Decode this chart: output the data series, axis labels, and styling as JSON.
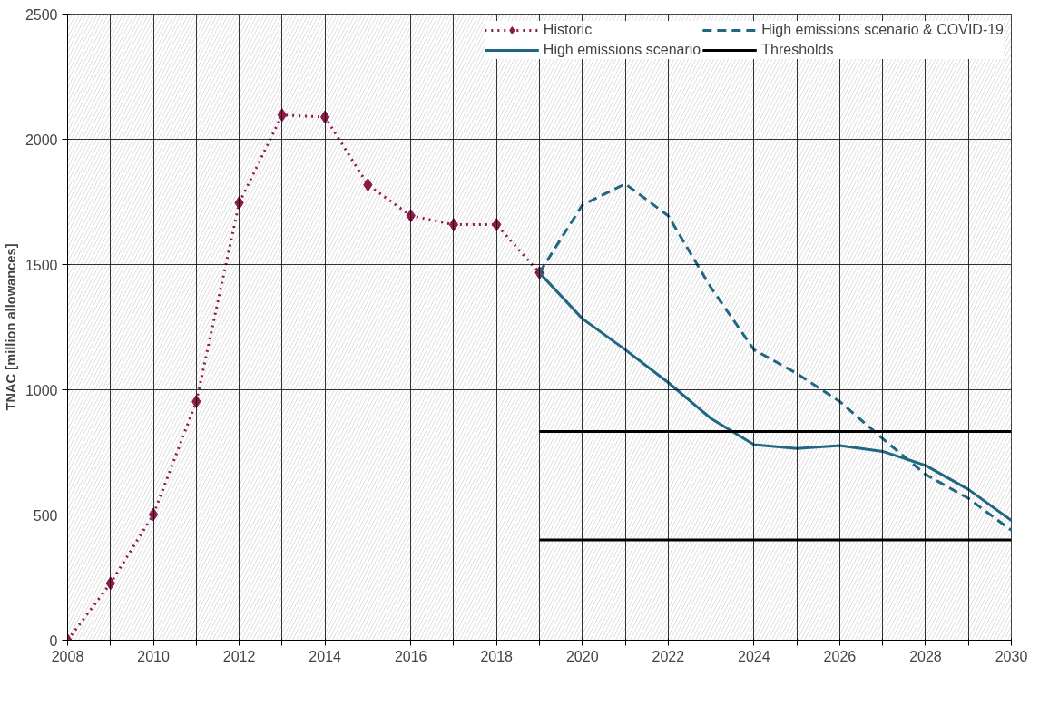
{
  "chart_data": {
    "type": "line",
    "ylabel": "TNAC [million allowances]",
    "xlim": [
      2008,
      2030
    ],
    "ylim": [
      0,
      2500
    ],
    "xticks": [
      2008,
      {
        "value": 2009,
        "label": null
      },
      2010,
      {
        "value": 2011,
        "label": null
      },
      2012,
      {
        "value": 2013,
        "label": null
      },
      2014,
      {
        "value": 2015,
        "label": null
      },
      2016,
      {
        "value": 2017,
        "label": null
      },
      2018,
      {
        "value": 2019,
        "label": null
      },
      2020,
      {
        "value": 2021,
        "label": null
      },
      2022,
      {
        "value": 2023,
        "label": null
      },
      2024,
      {
        "value": 2025,
        "label": null
      },
      2026,
      {
        "value": 2027,
        "label": null
      },
      2028,
      {
        "value": 2029,
        "label": null
      },
      2030
    ],
    "yticks": [
      0,
      500,
      1000,
      1500,
      2000,
      2500
    ],
    "grid": true,
    "legend": "top right",
    "series": [
      {
        "name": "Historic",
        "color": "#8b1a4a",
        "line_style": "dotted",
        "marker": "diamond",
        "x": [
          2008,
          2009,
          2010,
          2011,
          2012,
          2013,
          2014,
          2015,
          2016,
          2017,
          2018,
          2019
        ],
        "values": [
          0,
          227,
          502,
          953,
          1746,
          2097,
          2089,
          1818,
          1695,
          1659,
          1659,
          1467
        ]
      },
      {
        "name": "High emissions scenario",
        "color": "#1f6782",
        "line_style": "solid",
        "marker": "none",
        "x": [
          2019,
          2020,
          2021,
          2022,
          2023,
          2024,
          2025,
          2026,
          2027,
          2028,
          2029,
          2030
        ],
        "values": [
          1467,
          1284,
          1160,
          1029,
          885,
          781,
          765,
          777,
          754,
          698,
          602,
          478
        ]
      },
      {
        "name": "High emissions scenario & COVID-19",
        "color": "#1f6782",
        "line_style": "dashed",
        "marker": "none",
        "x": [
          2019,
          2020,
          2021,
          2022,
          2023,
          2024,
          2025,
          2026,
          2027,
          2028,
          2029,
          2030
        ],
        "values": [
          1467,
          1738,
          1822,
          1695,
          1407,
          1160,
          1065,
          953,
          805,
          662,
          566,
          439
        ]
      },
      {
        "name": "Thresholds",
        "color": "#000000",
        "line_style": "solid",
        "marker": "none",
        "x": [
          2019,
          2030
        ],
        "values": [
          833,
          833
        ]
      },
      {
        "color": "#000000",
        "line_style": "solid",
        "marker": "none",
        "x": [
          2019,
          2030
        ],
        "values": [
          400,
          400
        ]
      }
    ]
  }
}
